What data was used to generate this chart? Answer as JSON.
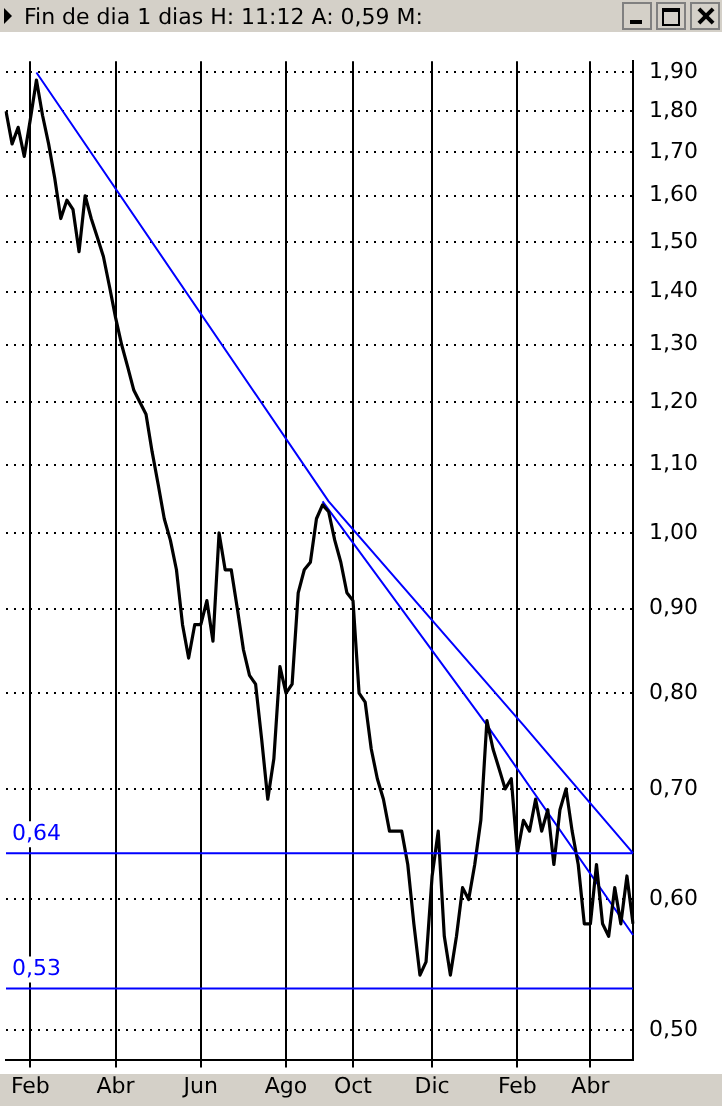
{
  "chart_data": {
    "type": "line",
    "title": "Fin de dia 1 dias  H: 11:12  A: 0,59  M:",
    "log": "y",
    "grid": true,
    "marker": "none",
    "line_style": "solid",
    "categories": [
      null,
      null,
      null,
      null,
      "Feb",
      null,
      null,
      null,
      null,
      null,
      null,
      null,
      null,
      null,
      null,
      null,
      null,
      null,
      "Abr",
      null,
      null,
      null,
      null,
      null,
      null,
      null,
      null,
      null,
      null,
      null,
      null,
      null,
      "Jun",
      null,
      null,
      null,
      null,
      null,
      null,
      null,
      null,
      null,
      null,
      null,
      null,
      null,
      "Ago",
      null,
      null,
      null,
      null,
      null,
      null,
      null,
      null,
      null,
      null,
      "Oct",
      null,
      null,
      null,
      null,
      null,
      null,
      null,
      null,
      null,
      null,
      null,
      null,
      "Dic",
      null,
      null,
      null,
      null,
      null,
      null,
      null,
      null,
      null,
      null,
      null,
      null,
      null,
      "Feb",
      null,
      null,
      null,
      null,
      null,
      null,
      null,
      null,
      null,
      null,
      null,
      "Abr",
      null,
      null,
      null,
      null,
      null,
      null,
      null
    ],
    "ylim": [
      0.48,
      1.93
    ],
    "yticks": [
      {
        "value": 0.5,
        "label": "0,50"
      },
      {
        "value": 0.6,
        "label": "0,60"
      },
      {
        "value": 0.7,
        "label": "0,70"
      },
      {
        "value": 0.8,
        "label": "0,80"
      },
      {
        "value": 0.9,
        "label": "0,90"
      },
      {
        "value": 1.0,
        "label": "1,00"
      },
      {
        "value": 1.1,
        "label": "1,10"
      },
      {
        "value": 1.2,
        "label": "1,20"
      },
      {
        "value": 1.3,
        "label": "1,30"
      },
      {
        "value": 1.4,
        "label": "1,40"
      },
      {
        "value": 1.5,
        "label": "1,50"
      },
      {
        "value": 1.6,
        "label": "1,60"
      },
      {
        "value": 1.7,
        "label": "1,70"
      },
      {
        "value": 1.8,
        "label": "1,80"
      },
      {
        "value": 1.9,
        "label": "1,90"
      }
    ],
    "series": [
      {
        "color": "#000000",
        "values": [
          1.8,
          1.72,
          1.76,
          1.69,
          1.78,
          1.88,
          1.79,
          1.72,
          1.64,
          1.55,
          1.59,
          1.57,
          1.48,
          1.6,
          1.55,
          1.51,
          1.47,
          1.41,
          1.35,
          1.3,
          1.26,
          1.22,
          1.2,
          1.18,
          1.12,
          1.07,
          1.02,
          0.99,
          0.95,
          0.88,
          0.84,
          0.88,
          0.88,
          0.91,
          0.86,
          1.0,
          0.95,
          0.95,
          0.9,
          0.85,
          0.82,
          0.81,
          0.75,
          0.69,
          0.73,
          0.83,
          0.8,
          0.81,
          0.92,
          0.95,
          0.96,
          1.02,
          1.04,
          1.03,
          0.99,
          0.96,
          0.92,
          0.91,
          0.8,
          0.79,
          0.74,
          0.71,
          0.69,
          0.66,
          0.66,
          0.66,
          0.63,
          0.58,
          0.54,
          0.55,
          0.62,
          0.66,
          0.57,
          0.54,
          0.57,
          0.61,
          0.6,
          0.63,
          0.67,
          0.77,
          0.74,
          0.72,
          0.7,
          0.71,
          0.64,
          0.67,
          0.66,
          0.69,
          0.66,
          0.68,
          0.63,
          0.68,
          0.7,
          0.66,
          0.63,
          0.58,
          0.58,
          0.63,
          0.58,
          0.57,
          0.61,
          0.58,
          0.62,
          0.58
        ]
      },
      {
        "color": "#0000ff",
        "values": [
          null,
          null,
          null,
          null,
          null,
          1.9,
          null,
          null,
          null,
          null,
          null,
          null,
          null,
          null,
          null,
          null,
          null,
          null,
          null,
          null,
          null,
          null,
          null,
          null,
          null,
          null,
          null,
          null,
          null,
          null,
          null,
          null,
          null,
          null,
          null,
          null,
          null,
          null,
          null,
          null,
          null,
          null,
          null,
          null,
          null,
          null,
          null,
          null,
          null,
          null,
          null,
          null,
          null,
          1.045,
          null,
          null,
          null,
          null,
          null,
          null,
          null,
          null,
          null,
          null,
          null,
          null,
          null,
          null,
          null,
          null,
          null,
          null,
          null,
          null,
          null,
          null,
          null,
          null,
          null,
          null,
          null,
          null,
          null,
          null,
          null,
          0.765,
          null,
          null,
          null,
          null,
          null,
          null,
          null,
          null,
          null,
          null,
          null,
          null,
          null,
          null,
          null,
          null,
          null,
          0.64
        ]
      },
      {
        "color": "#0000ff",
        "values": [
          null,
          null,
          null,
          null,
          null,
          null,
          null,
          null,
          null,
          null,
          null,
          null,
          null,
          null,
          null,
          null,
          null,
          null,
          null,
          null,
          null,
          null,
          null,
          null,
          null,
          null,
          null,
          null,
          null,
          null,
          null,
          null,
          null,
          null,
          null,
          null,
          null,
          null,
          null,
          null,
          null,
          null,
          null,
          null,
          null,
          null,
          null,
          null,
          null,
          null,
          null,
          null,
          1.045,
          null,
          null,
          null,
          null,
          null,
          null,
          null,
          null,
          null,
          null,
          null,
          null,
          null,
          null,
          null,
          null,
          null,
          null,
          null,
          null,
          null,
          null,
          null,
          null,
          null,
          null,
          0.765,
          null,
          null,
          null,
          null,
          null,
          null,
          null,
          null,
          null,
          null,
          null,
          null,
          null,
          null,
          null,
          null,
          null,
          null,
          null,
          null,
          null,
          null,
          null,
          0.571
        ]
      }
    ],
    "ref_lines": [
      {
        "axis": "y",
        "value": 0.64,
        "label": "0,64",
        "color": "#0000ff"
      },
      {
        "axis": "y",
        "value": 0.53,
        "label": "0,53",
        "color": "#0000ff"
      }
    ]
  }
}
